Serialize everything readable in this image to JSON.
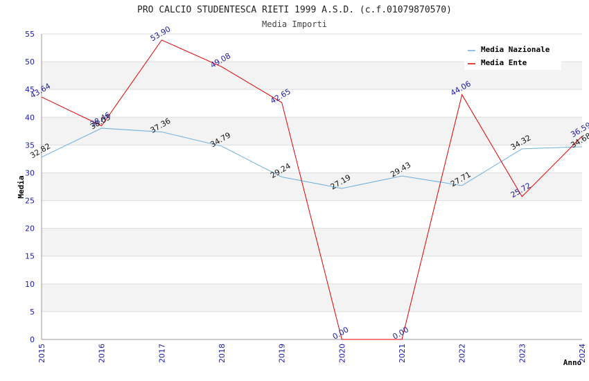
{
  "chart_data": {
    "type": "line",
    "title": "PRO CALCIO STUDENTESCA RIETI 1999 A.S.D. (c.f.01079870570)",
    "subtitle": "Media Importi",
    "xlabel": "Anno",
    "ylabel": "Media",
    "x": [
      "2015",
      "2016",
      "2017",
      "2018",
      "2019",
      "2020",
      "2021",
      "2022",
      "2023",
      "2024"
    ],
    "ylim": [
      0,
      55
    ],
    "yticks": [
      0,
      5,
      10,
      15,
      20,
      25,
      30,
      35,
      40,
      45,
      50,
      55
    ],
    "grid": true,
    "legend": "top-right",
    "series": [
      {
        "name": "Media Nazionale",
        "color": "#6aaee0",
        "values": [
          32.82,
          38.03,
          37.36,
          34.79,
          29.24,
          27.19,
          29.43,
          27.71,
          34.32,
          34.68
        ],
        "labels": [
          "32.82",
          "38.03",
          "37.36",
          "34.79",
          "29.24",
          "27.19",
          "29.43",
          "27.71",
          "34.32",
          "34.68"
        ]
      },
      {
        "name": "Media Ente",
        "color": "#e00000",
        "values": [
          43.64,
          38.46,
          53.9,
          49.08,
          42.65,
          0.0,
          0.0,
          44.06,
          25.72,
          36.59
        ],
        "labels": [
          "43.64",
          "38.46",
          "53.90",
          "49.08",
          "42.65",
          "0.00",
          "0.00",
          "44.06",
          "25.72",
          "36.59"
        ]
      }
    ]
  }
}
